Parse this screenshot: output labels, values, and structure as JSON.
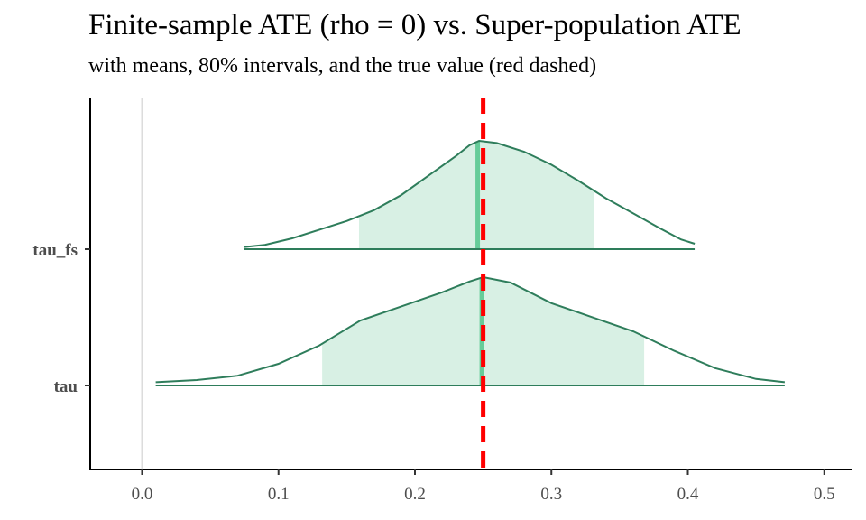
{
  "chart_data": {
    "type": "area",
    "title": "Finite-sample ATE (rho = 0) vs. Super-population ATE",
    "subtitle": "with means, 80% intervals, and the true value (red dashed)",
    "xlim": [
      -0.038,
      0.52
    ],
    "x_ticks": [
      0.0,
      0.1,
      0.2,
      0.3,
      0.4,
      0.5
    ],
    "x_tick_labels": [
      "0.0",
      "0.1",
      "0.2",
      "0.3",
      "0.4",
      "0.5"
    ],
    "categories": [
      "tau_fs",
      "tau"
    ],
    "true_value": 0.25,
    "series": [
      {
        "name": "tau_fs",
        "mean": 0.246,
        "interval80": [
          0.159,
          0.331
        ],
        "density": [
          [
            0.075,
            0.02
          ],
          [
            0.09,
            0.04
          ],
          [
            0.11,
            0.1
          ],
          [
            0.13,
            0.18
          ],
          [
            0.15,
            0.26
          ],
          [
            0.17,
            0.36
          ],
          [
            0.19,
            0.5
          ],
          [
            0.21,
            0.68
          ],
          [
            0.23,
            0.86
          ],
          [
            0.24,
            0.96
          ],
          [
            0.247,
            1.0
          ],
          [
            0.26,
            0.98
          ],
          [
            0.28,
            0.9
          ],
          [
            0.3,
            0.78
          ],
          [
            0.32,
            0.63
          ],
          [
            0.34,
            0.47
          ],
          [
            0.36,
            0.33
          ],
          [
            0.38,
            0.19
          ],
          [
            0.395,
            0.09
          ],
          [
            0.405,
            0.05
          ]
        ]
      },
      {
        "name": "tau",
        "mean": 0.249,
        "interval80": [
          0.132,
          0.368
        ],
        "density": [
          [
            0.01,
            0.03
          ],
          [
            0.04,
            0.05
          ],
          [
            0.07,
            0.09
          ],
          [
            0.1,
            0.2
          ],
          [
            0.13,
            0.37
          ],
          [
            0.16,
            0.6
          ],
          [
            0.19,
            0.73
          ],
          [
            0.22,
            0.86
          ],
          [
            0.24,
            0.96
          ],
          [
            0.25,
            1.0
          ],
          [
            0.27,
            0.95
          ],
          [
            0.3,
            0.76
          ],
          [
            0.33,
            0.63
          ],
          [
            0.36,
            0.5
          ],
          [
            0.39,
            0.32
          ],
          [
            0.42,
            0.16
          ],
          [
            0.45,
            0.06
          ],
          [
            0.471,
            0.03
          ]
        ]
      }
    ],
    "colors": {
      "outline": "#2e7d5b",
      "fill": "#d8f0e4",
      "mean": "#66cc99",
      "true": "#ff0000",
      "zero_line": "#dcdcdc",
      "axis": "#000000"
    },
    "grid": false
  }
}
